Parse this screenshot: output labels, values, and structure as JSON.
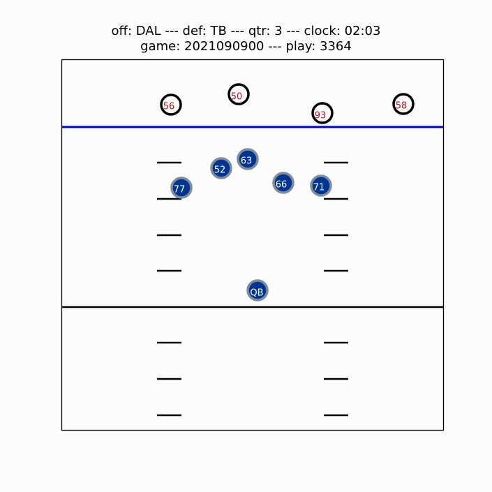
{
  "header": {
    "line1": "off: DAL --- def: TB --- qtr: 3 --- clock: 02:03",
    "line2": "game: 2021090900 --- play: 3364"
  },
  "colors": {
    "offense_fill": "#003594",
    "offense_stroke": "#7f8c99",
    "offense_text": "#ffffff",
    "defense_stroke": "#000000",
    "defense_text": "#c0101a",
    "line_of_scrimmage": "#0000cc",
    "reference_line": "#000000"
  },
  "defense": [
    {
      "label": "56"
    },
    {
      "label": "50"
    },
    {
      "label": "93"
    },
    {
      "label": "58"
    }
  ],
  "offense": [
    {
      "label": "63"
    },
    {
      "label": "52"
    },
    {
      "label": "66"
    },
    {
      "label": "71"
    },
    {
      "label": "77"
    },
    {
      "label": "QB"
    }
  ]
}
